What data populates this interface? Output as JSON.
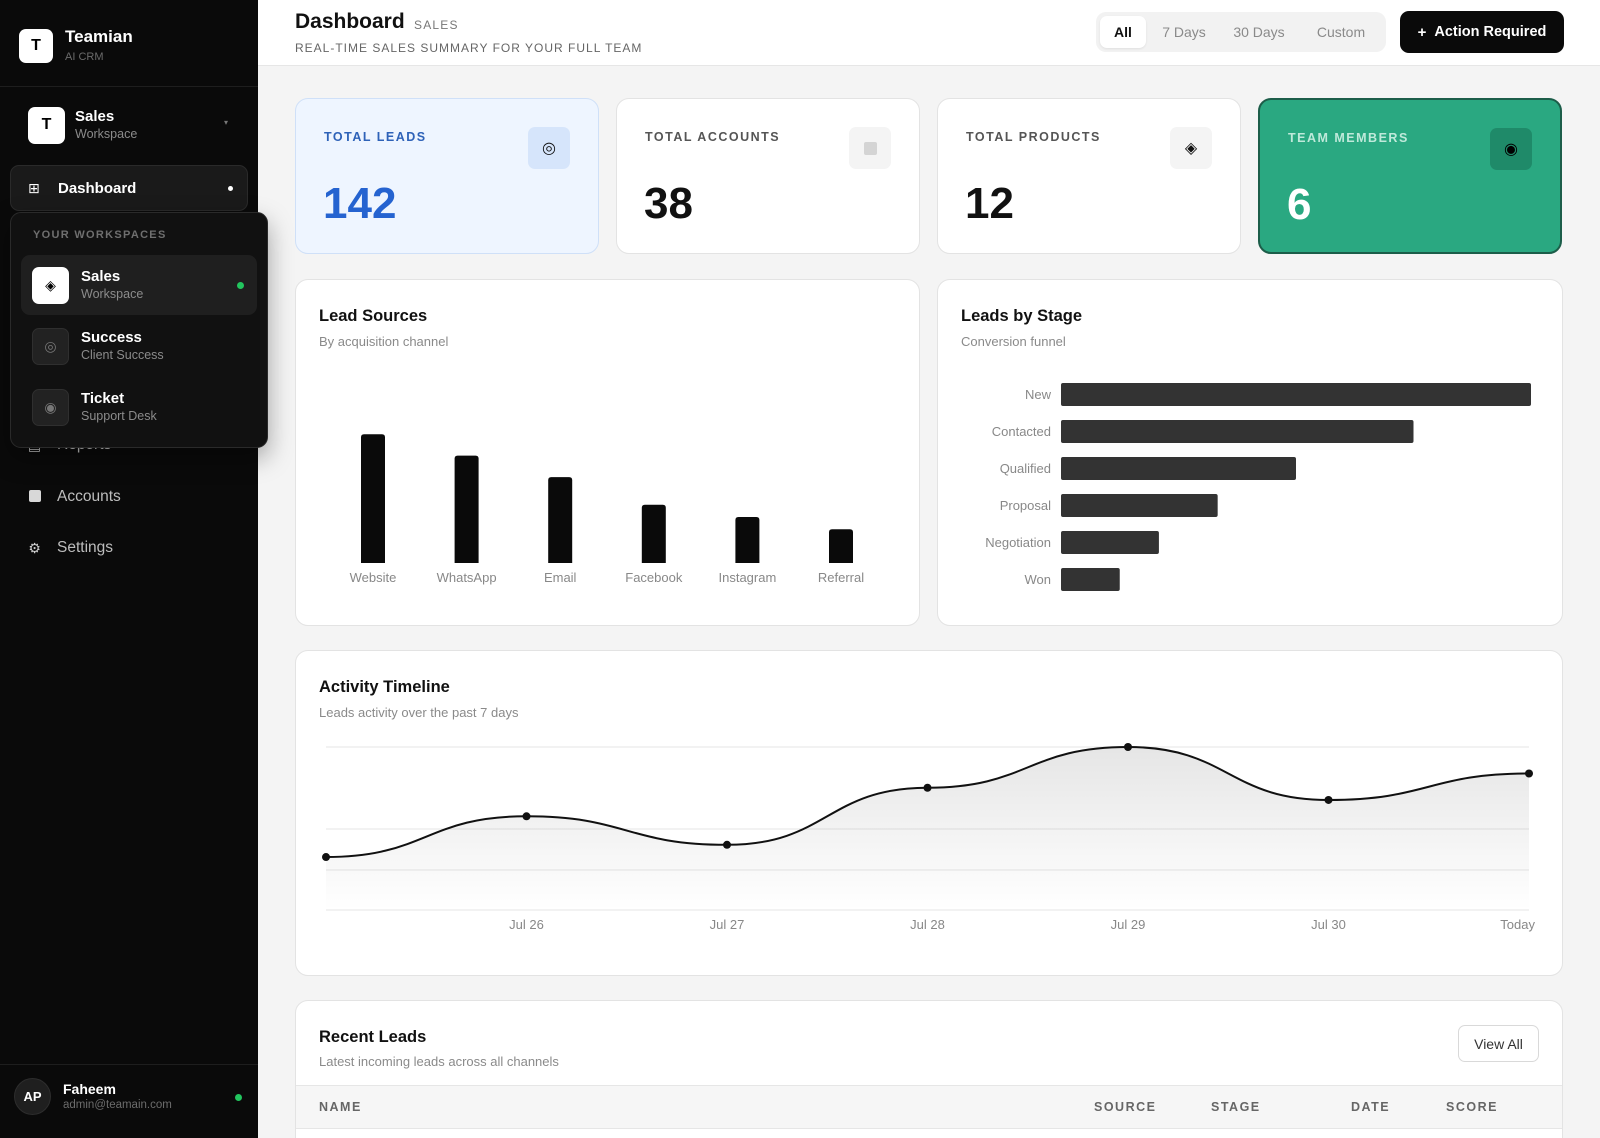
{
  "brand": {
    "logo_letter": "T",
    "name": "Teamian",
    "subtitle": "AI CRM"
  },
  "workspace": {
    "logo_letter": "T",
    "name": "Sales",
    "subtitle": "Workspace"
  },
  "nav": {
    "active": {
      "label": "Dashboard",
      "icon": "grid-icon"
    },
    "items": [
      {
        "label": "Reports",
        "icon": "chart-icon"
      },
      {
        "label": "Accounts",
        "icon": "square-icon"
      },
      {
        "label": "Settings",
        "icon": "gear-icon"
      }
    ]
  },
  "dropdown": {
    "title": "YOUR WORKSPACES",
    "items": [
      {
        "name": "Sales",
        "subtitle": "Workspace",
        "icon": "diamond-icon",
        "active": true
      },
      {
        "name": "Success",
        "subtitle": "Client Success",
        "icon": "ring-icon",
        "active": false
      },
      {
        "name": "Ticket",
        "subtitle": "Support Desk",
        "icon": "dot-icon",
        "active": false
      }
    ]
  },
  "profile": {
    "initials": "AP",
    "name": "Faheem",
    "email": "admin@teamain.com",
    "status_color": "#22c55e"
  },
  "header": {
    "title": "Dashboard",
    "tag": "SALES",
    "subtitle": "REAL-TIME SALES SUMMARY FOR YOUR FULL TEAM",
    "ranges": [
      "All",
      "7 Days",
      "30 Days",
      "Custom"
    ],
    "selected_range": "All",
    "action_label": "Action Required"
  },
  "stats": [
    {
      "label": "TOTAL LEADS",
      "value": "142",
      "icon": "ring-icon",
      "variant": "blue"
    },
    {
      "label": "TOTAL ACCOUNTS",
      "value": "38",
      "icon": "square-icon",
      "variant": "plain"
    },
    {
      "label": "TOTAL PRODUCTS",
      "value": "12",
      "icon": "diamond-icon",
      "variant": "plain"
    },
    {
      "label": "TEAM MEMBERS",
      "value": "6",
      "icon": "dot-icon",
      "variant": "green"
    }
  ],
  "colors": {
    "accent_blue": "#2563d0",
    "accent_green": "#2aa881",
    "bar_dark": "#0a0a0a",
    "bar_stage": "#333333"
  },
  "lead_sources": {
    "title": "Lead Sources",
    "subtitle": "By acquisition channel"
  },
  "leads_by_stage": {
    "title": "Leads by Stage",
    "subtitle": "Conversion funnel"
  },
  "activity": {
    "title": "Activity Timeline",
    "subtitle": "Leads activity over the past 7 days"
  },
  "recent_leads": {
    "title": "Recent Leads",
    "subtitle": "Latest incoming leads across all channels",
    "view_all_label": "View All",
    "columns": [
      "NAME",
      "SOURCE",
      "STAGE",
      "DATE",
      "SCORE"
    ]
  },
  "chart_data": [
    {
      "type": "bar",
      "orientation": "vertical",
      "categories": [
        "Website",
        "WhatsApp",
        "Email",
        "Facebook",
        "Instagram",
        "Referral"
      ],
      "values": [
        42,
        35,
        28,
        19,
        15,
        11
      ],
      "ylim": [
        0,
        45
      ],
      "grid": false
    },
    {
      "type": "bar",
      "orientation": "horizontal",
      "categories": [
        "New",
        "Contacted",
        "Qualified",
        "Proposal",
        "Negotiation",
        "Won"
      ],
      "values": [
        48,
        36,
        24,
        16,
        10,
        6
      ],
      "xlim": [
        0,
        48
      ],
      "grid": false
    },
    {
      "type": "area",
      "categories": [
        "",
        "Jul 26",
        "Jul 27",
        "Jul 28",
        "Jul 29",
        "Jul 30",
        "Today"
      ],
      "values": [
        13,
        23,
        16,
        30,
        40,
        27,
        33.5
      ],
      "ylim": [
        0,
        40
      ],
      "grid": true
    }
  ]
}
